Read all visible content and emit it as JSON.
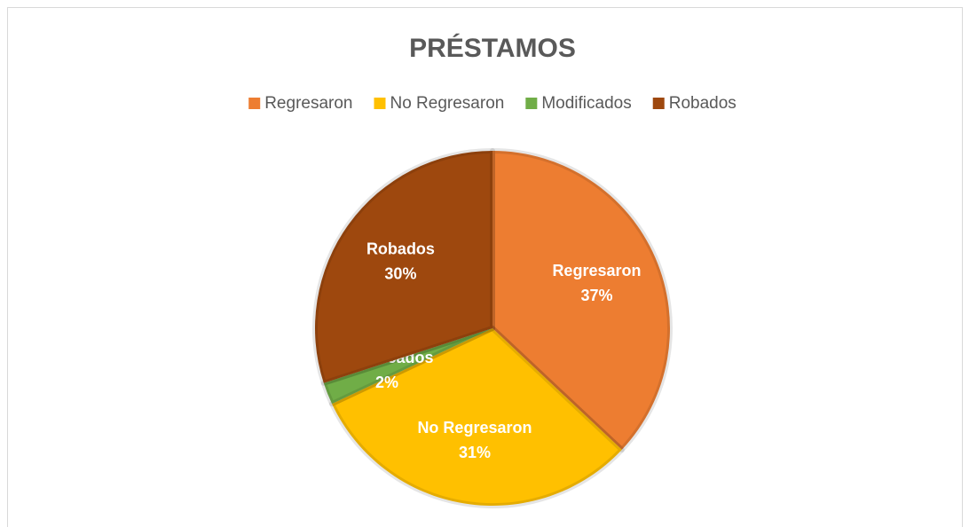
{
  "chart_data": {
    "type": "pie",
    "title": "PRÉSTAMOS",
    "categories": [
      "Regresaron",
      "No Regresaron",
      "Modificados",
      "Robados"
    ],
    "values": [
      37,
      31,
      2,
      30
    ],
    "value_labels": [
      "37%",
      "31%",
      "2%",
      "30%"
    ],
    "colors": [
      "#ed7d31",
      "#ffc000",
      "#70ad47",
      "#9e480e"
    ],
    "legend": "top"
  }
}
